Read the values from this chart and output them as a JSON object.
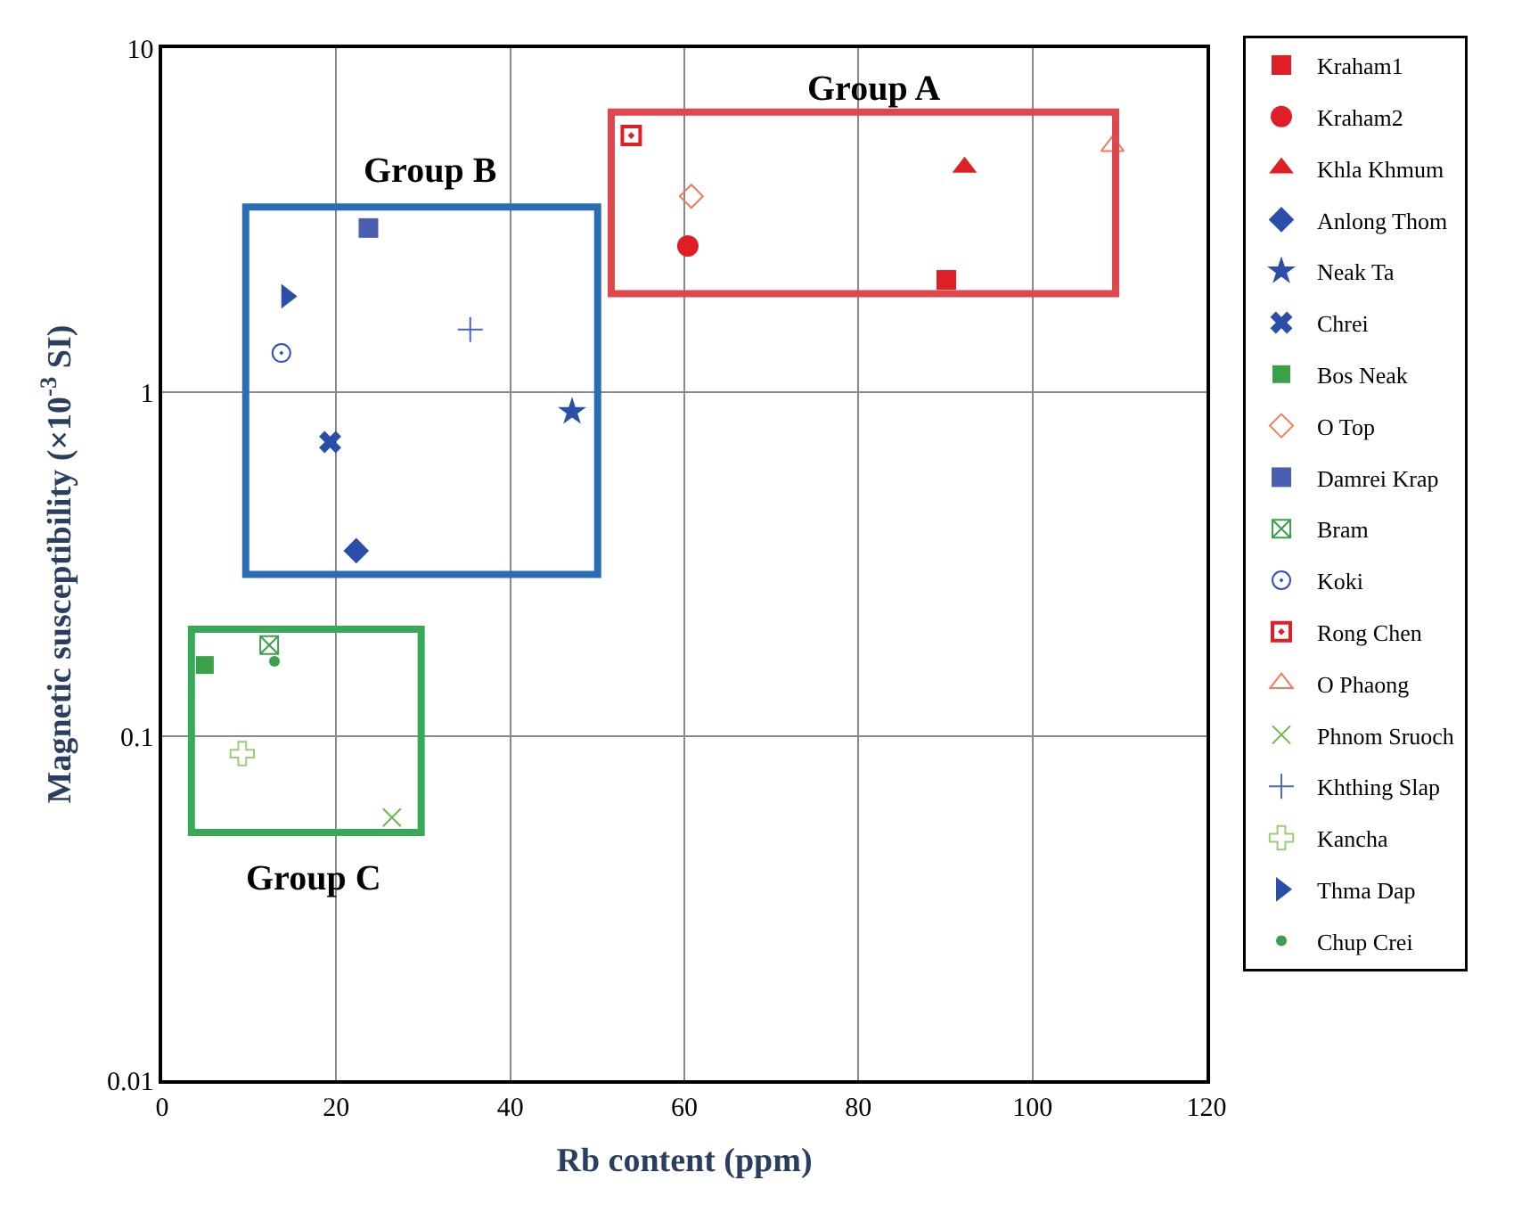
{
  "chart_data": {
    "type": "scatter",
    "xlabel": "Rb content (ppm)",
    "ylabel": "Magnetic susceptibility (×10$^{-3}$ SI)",
    "log": "y",
    "xlim": [
      0,
      120
    ],
    "xticks": [
      0,
      20,
      40,
      60,
      80,
      100,
      120
    ],
    "ylim": [
      0.01,
      10
    ],
    "yticks": [
      0.01,
      0.1,
      1,
      10
    ],
    "grid": true,
    "legend": "right",
    "series": [
      {
        "name": "Kraham1",
        "color": "#e01e26",
        "marker": "square",
        "x": [
          90.1
        ],
        "values": [
          2.12
        ]
      },
      {
        "name": "Kraham2",
        "color": "#e01e26",
        "marker": "circle",
        "x": [
          60.4
        ],
        "values": [
          2.66
        ]
      },
      {
        "name": "Khla Khmum",
        "color": "#e01e26",
        "marker": "triangle",
        "x": [
          92.2
        ],
        "values": [
          4.5
        ]
      },
      {
        "name": "Anlong Thom",
        "color": "#2a4fa8",
        "marker": "diamond",
        "x": [
          22.3
        ],
        "values": [
          0.346
        ]
      },
      {
        "name": "Neak Ta",
        "color": "#2a4fa8",
        "marker": "star",
        "x": [
          47.1
        ],
        "values": [
          0.877
        ]
      },
      {
        "name": "Chrei",
        "color": "#2a4fa8",
        "marker": "x",
        "x": [
          19.3
        ],
        "values": [
          0.716
        ]
      },
      {
        "name": "Bos Neak",
        "color": "#3aa04a",
        "marker": "square-half",
        "x": [
          4.9
        ],
        "values": [
          0.161
        ]
      },
      {
        "name": "O Top",
        "color": "#f07a5a",
        "marker": "diamond-open",
        "x": [
          60.8
        ],
        "values": [
          3.71
        ]
      },
      {
        "name": "Damrei Krap",
        "color": "#4a5fb0",
        "marker": "square",
        "x": [
          23.7
        ],
        "values": [
          3.0
        ]
      },
      {
        "name": "Bram",
        "color": "#3aa04a",
        "marker": "cross",
        "x": [
          12.3
        ],
        "values": [
          0.184
        ]
      },
      {
        "name": "Koki",
        "color": "#3050c0",
        "marker": "circle-dot-open",
        "x": [
          13.7
        ],
        "values": [
          1.3
        ]
      },
      {
        "name": "Rong Chen",
        "color": "#e01e26",
        "marker": "square-open-dot",
        "x": [
          53.9
        ],
        "values": [
          5.57
        ]
      },
      {
        "name": "O Phaong",
        "color": "#f07a5a",
        "marker": "triangle-open",
        "x": [
          109.2
        ],
        "values": [
          5.19
        ]
      },
      {
        "name": "Phnom Sruoch",
        "color": "#6cb84a",
        "marker": "cross",
        "x": [
          26.4
        ],
        "values": [
          0.058
        ]
      },
      {
        "name": "Khthing Slap",
        "color": "#4a66c8",
        "marker": "cross-thin",
        "x": [
          35.4
        ],
        "values": [
          1.52
        ]
      },
      {
        "name": "Kancha",
        "color": "#9ccc78",
        "marker": "cross-open",
        "x": [
          9.2
        ],
        "values": [
          0.089
        ]
      },
      {
        "name": "Thma Dap",
        "color": "#2a4fa8",
        "marker": "triangle-right",
        "x": [
          14.3
        ],
        "values": [
          1.9
        ]
      },
      {
        "name": "Chup Crei",
        "color": "#3aa04a",
        "marker": "circle-small",
        "x": [
          12.9
        ],
        "values": [
          0.165
        ]
      }
    ],
    "annotations": [
      "Group A",
      "Group B",
      "Group C"
    ]
  }
}
